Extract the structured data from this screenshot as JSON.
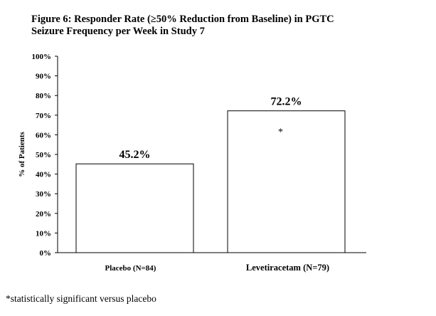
{
  "title": {
    "line1": "Figure 6: Responder Rate (≥50% Reduction from Baseline) in PGTC",
    "line2": "Seizure Frequency per Week in Study 7"
  },
  "footnote": "*statistically significant versus placebo",
  "chart_data": {
    "type": "bar",
    "ylabel": "% of Patients",
    "xlabel": "",
    "ylim": [
      0,
      100
    ],
    "yticks": [
      "0%",
      "10%",
      "20%",
      "30%",
      "40%",
      "50%",
      "60%",
      "70%",
      "80%",
      "90%",
      "100%"
    ],
    "categories": [
      "Placebo (N=84)",
      "Levetiracetam (N=79)"
    ],
    "values": [
      45.2,
      72.2
    ],
    "data_labels": [
      "45.2%",
      "72.2%"
    ],
    "annotations": [
      "",
      "*"
    ],
    "grid": false
  }
}
